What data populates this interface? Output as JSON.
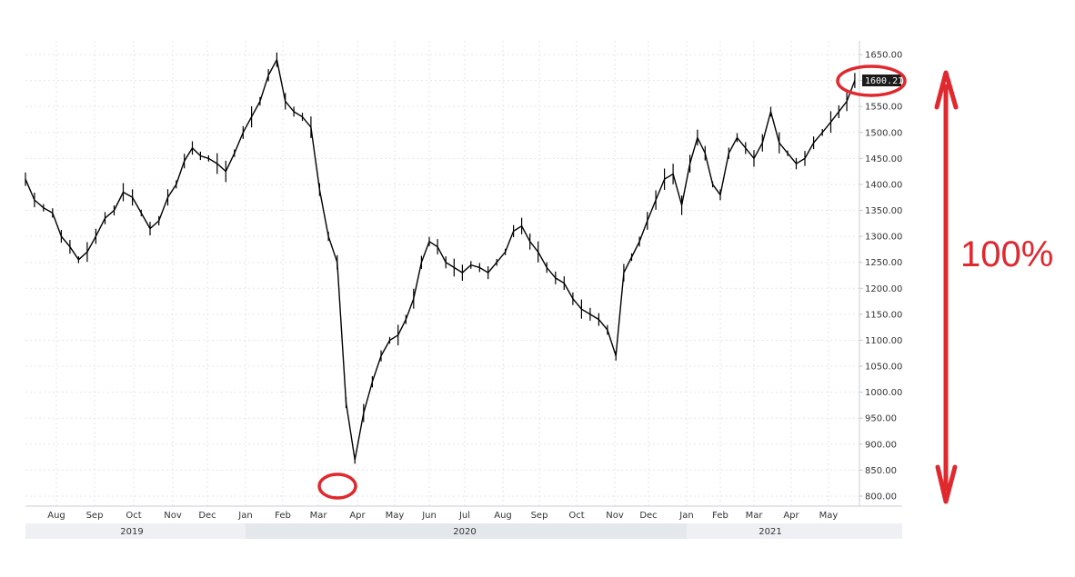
{
  "chart_data": {
    "type": "line",
    "style": "OHLC price bars",
    "title": "",
    "xlabel": "",
    "ylabel": "",
    "ylim": [
      790,
      1660
    ],
    "y_ticks": [
      "800.00",
      "850.00",
      "900.00",
      "950.00",
      "1000.00",
      "1050.00",
      "1100.00",
      "1150.00",
      "1200.00",
      "1250.00",
      "1300.00",
      "1350.00",
      "1400.00",
      "1450.00",
      "1500.00",
      "1550.00",
      "1600.00",
      "1650.00"
    ],
    "x_month_labels": [
      "Aug",
      "Sep",
      "Oct",
      "Nov",
      "Dec",
      "Jan",
      "Feb",
      "Mar",
      "Apr",
      "May",
      "Jun",
      "Jul",
      "Aug",
      "Sep",
      "Oct",
      "Nov",
      "Dec",
      "Jan",
      "Feb",
      "Mar",
      "Apr",
      "May"
    ],
    "year_labels": [
      "2019",
      "2020",
      "2021"
    ],
    "grid": true,
    "last_value_label": "1600.21",
    "series": [
      {
        "x": [
          "2019-07-08",
          "2019-07-15",
          "2019-07-22",
          "2019-07-29",
          "2019-08-05",
          "2019-08-12",
          "2019-08-19",
          "2019-08-26",
          "2019-09-02",
          "2019-09-09",
          "2019-09-16",
          "2019-09-23",
          "2019-09-30",
          "2019-10-07",
          "2019-10-14",
          "2019-10-21",
          "2019-10-28",
          "2019-11-04",
          "2019-11-11",
          "2019-11-18",
          "2019-11-25",
          "2019-12-02",
          "2019-12-09",
          "2019-12-16",
          "2019-12-23",
          "2019-12-30",
          "2020-01-06",
          "2020-01-13",
          "2020-01-20",
          "2020-01-27",
          "2020-02-03",
          "2020-02-10",
          "2020-02-17",
          "2020-02-24",
          "2020-03-02",
          "2020-03-09",
          "2020-03-16",
          "2020-03-23",
          "2020-03-30",
          "2020-04-06",
          "2020-04-13",
          "2020-04-20",
          "2020-04-27",
          "2020-05-04",
          "2020-05-11",
          "2020-05-18",
          "2020-05-25",
          "2020-06-01",
          "2020-06-08",
          "2020-06-15",
          "2020-06-22",
          "2020-06-29",
          "2020-07-06",
          "2020-07-13",
          "2020-07-20",
          "2020-07-27",
          "2020-08-03",
          "2020-08-10",
          "2020-08-17",
          "2020-08-24",
          "2020-08-31",
          "2020-09-07",
          "2020-09-14",
          "2020-09-21",
          "2020-09-28",
          "2020-10-05",
          "2020-10-12",
          "2020-10-19",
          "2020-10-26",
          "2020-11-02",
          "2020-11-09",
          "2020-11-16",
          "2020-11-23",
          "2020-11-30",
          "2020-12-07",
          "2020-12-14",
          "2020-12-21",
          "2020-12-28",
          "2021-01-04",
          "2021-01-11",
          "2021-01-18",
          "2021-01-25",
          "2021-02-01",
          "2021-02-08",
          "2021-02-15",
          "2021-02-22",
          "2021-03-01",
          "2021-03-08",
          "2021-03-15",
          "2021-03-22",
          "2021-03-29",
          "2021-04-05",
          "2021-04-12",
          "2021-04-19",
          "2021-04-26",
          "2021-05-03",
          "2021-05-10",
          "2021-05-17",
          "2021-05-24"
        ],
        "values": [
          1410,
          1370,
          1355,
          1345,
          1300,
          1280,
          1255,
          1270,
          1300,
          1335,
          1350,
          1385,
          1375,
          1345,
          1315,
          1330,
          1375,
          1400,
          1445,
          1470,
          1455,
          1450,
          1440,
          1425,
          1460,
          1500,
          1530,
          1560,
          1610,
          1640,
          1560,
          1540,
          1530,
          1510,
          1390,
          1300,
          1250,
          980,
          870,
          960,
          1020,
          1070,
          1100,
          1110,
          1140,
          1180,
          1250,
          1290,
          1280,
          1250,
          1240,
          1230,
          1245,
          1240,
          1230,
          1250,
          1270,
          1310,
          1320,
          1290,
          1270,
          1240,
          1220,
          1210,
          1180,
          1160,
          1150,
          1140,
          1120,
          1070,
          1230,
          1260,
          1290,
          1330,
          1370,
          1410,
          1420,
          1360,
          1440,
          1490,
          1460,
          1400,
          1380,
          1460,
          1490,
          1470,
          1450,
          1480,
          1540,
          1480,
          1460,
          1440,
          1450,
          1480,
          1500,
          1520,
          1540,
          1560,
          1600
        ]
      }
    ]
  },
  "annotation": {
    "text": "100%",
    "color": "#e0282e"
  },
  "colors": {
    "price": "#000000",
    "grid": "#e3e6ea",
    "axis": "#c9cfd6",
    "year_band": "#eef0f3",
    "year_band_alt": "#e4e7eb",
    "label_box": "#1b1b1b"
  }
}
